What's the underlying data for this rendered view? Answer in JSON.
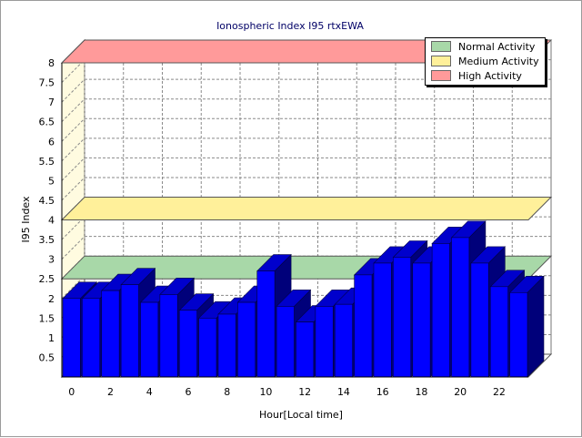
{
  "chart_data": {
    "type": "bar",
    "title": "Ionospheric Index I95 rtxEWA",
    "xlabel": "Hour[Local time]",
    "ylabel": "I95 Index",
    "x": [
      0,
      1,
      2,
      3,
      4,
      5,
      6,
      7,
      8,
      9,
      10,
      11,
      12,
      13,
      14,
      15,
      16,
      17,
      18,
      19,
      20,
      21,
      22,
      23
    ],
    "values": [
      2.0,
      2.0,
      2.2,
      2.35,
      1.9,
      2.1,
      1.7,
      1.5,
      1.6,
      1.9,
      2.7,
      1.8,
      1.4,
      1.8,
      1.85,
      2.6,
      2.9,
      3.05,
      2.9,
      3.4,
      3.55,
      2.9,
      2.3,
      2.15
    ],
    "x_ticks": [
      "0",
      "2",
      "4",
      "6",
      "8",
      "10",
      "12",
      "14",
      "16",
      "18",
      "20",
      "22"
    ],
    "y_ticks": [
      "0.5",
      "1",
      "1.5",
      "2",
      "2.5",
      "3",
      "3.5",
      "4",
      "4.5",
      "5",
      "5.5",
      "6",
      "6.5",
      "7",
      "7.5",
      "8"
    ],
    "ylim": [
      0,
      8
    ],
    "grid": true,
    "bar_color": "#0000ff",
    "legend_position": "top-right",
    "bands": [
      {
        "name": "Normal Activity",
        "level": 2.5,
        "color": "#a8d8a8"
      },
      {
        "name": "Medium Activity",
        "level": 4.0,
        "color": "#fff09a"
      },
      {
        "name": "High Activity",
        "level": 8.0,
        "color": "#ff9a9a"
      }
    ]
  }
}
